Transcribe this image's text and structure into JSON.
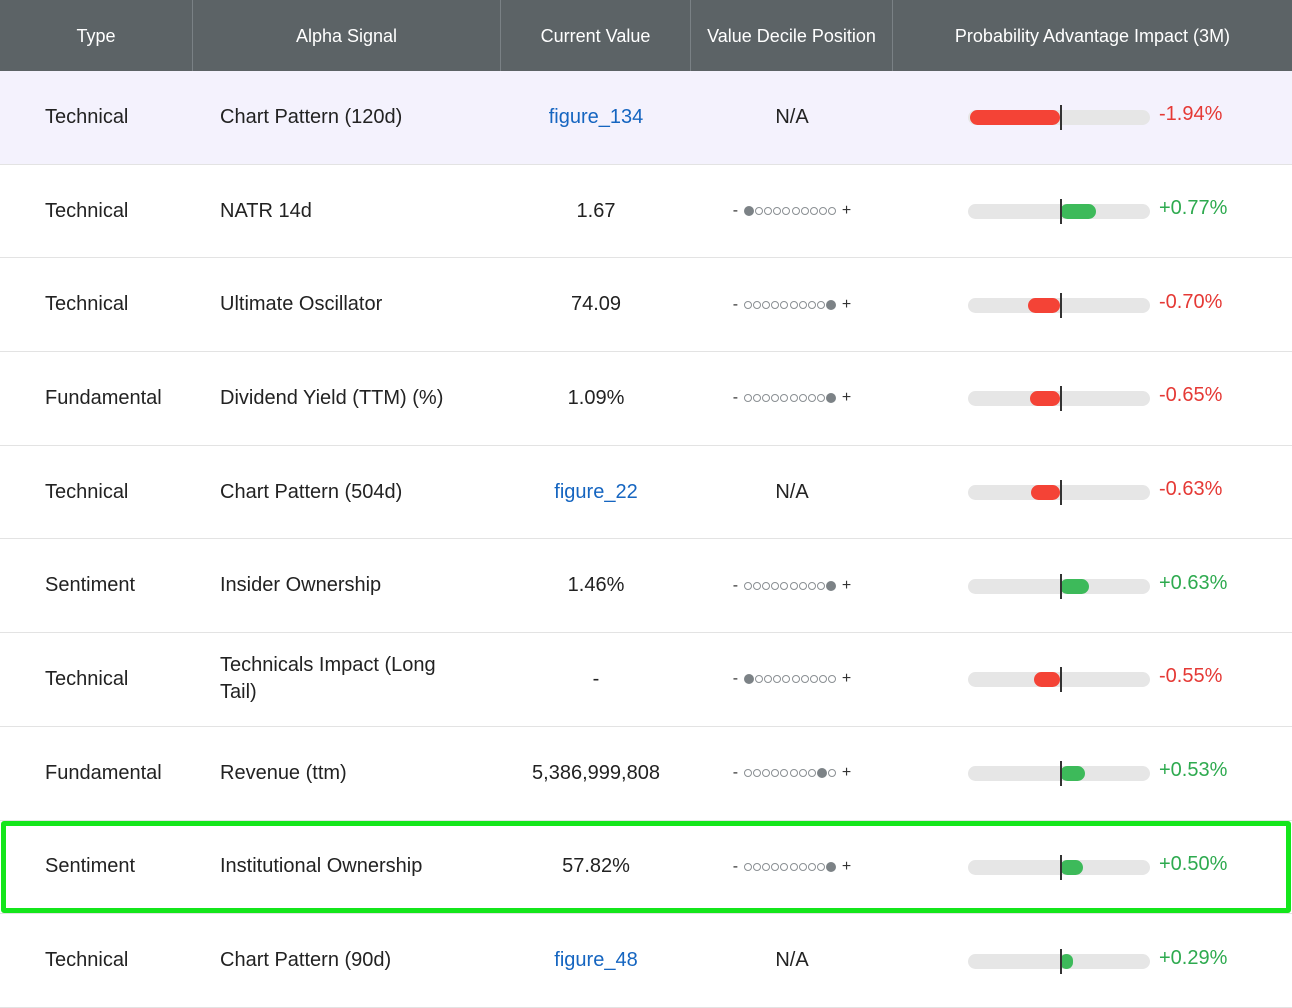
{
  "columns": {
    "type": "Type",
    "signal": "Alpha Signal",
    "value": "Current Value",
    "decile": "Value Decile Position",
    "impact": "Probability Advantage Impact (3M)"
  },
  "decile_minus": "-",
  "decile_plus": "+",
  "colors": {
    "header_bg": "#5c6366",
    "negative": "#f44336",
    "positive": "#3dba5a",
    "link": "#1565c0",
    "highlight_border": "#14e61b",
    "first_row_bg": "#f4f2fd"
  },
  "rows": [
    {
      "type": "Technical",
      "signal": "Chart Pattern (120d)",
      "value": "figure_134",
      "value_is_link": true,
      "decile": null,
      "decile_text": "N/A",
      "impact": "-1.94%",
      "impact_value": -1.94
    },
    {
      "type": "Technical",
      "signal": "NATR 14d",
      "value": "1.67",
      "value_is_link": false,
      "decile": 1,
      "decile_text": "",
      "impact": "+0.77%",
      "impact_value": 0.77
    },
    {
      "type": "Technical",
      "signal": "Ultimate Oscillator",
      "value": "74.09",
      "value_is_link": false,
      "decile": 10,
      "decile_text": "",
      "impact": "-0.70%",
      "impact_value": -0.7
    },
    {
      "type": "Fundamental",
      "signal": "Dividend Yield (TTM) (%)",
      "value": "1.09%",
      "value_is_link": false,
      "decile": 10,
      "decile_text": "",
      "impact": "-0.65%",
      "impact_value": -0.65
    },
    {
      "type": "Technical",
      "signal": "Chart Pattern (504d)",
      "value": "figure_22",
      "value_is_link": true,
      "decile": null,
      "decile_text": "N/A",
      "impact": "-0.63%",
      "impact_value": -0.63
    },
    {
      "type": "Sentiment",
      "signal": "Insider Ownership",
      "value": "1.46%",
      "value_is_link": false,
      "decile": 10,
      "decile_text": "",
      "impact": "+0.63%",
      "impact_value": 0.63
    },
    {
      "type": "Technical",
      "signal": "Technicals Impact (Long Tail)",
      "value": "-",
      "value_is_link": false,
      "decile": 1,
      "decile_text": "",
      "impact": "-0.55%",
      "impact_value": -0.55
    },
    {
      "type": "Fundamental",
      "signal": "Revenue (ttm)",
      "value": "5,386,999,808",
      "value_is_link": false,
      "decile": 9,
      "decile_text": "",
      "impact": "+0.53%",
      "impact_value": 0.53
    },
    {
      "type": "Sentiment",
      "signal": "Institutional Ownership",
      "value": "57.82%",
      "value_is_link": false,
      "decile": 10,
      "decile_text": "",
      "impact": "+0.50%",
      "impact_value": 0.5,
      "highlighted": true
    },
    {
      "type": "Technical",
      "signal": "Chart Pattern (90d)",
      "value": "figure_48",
      "value_is_link": true,
      "decile": null,
      "decile_text": "N/A",
      "impact": "+0.29%",
      "impact_value": 0.29
    }
  ]
}
